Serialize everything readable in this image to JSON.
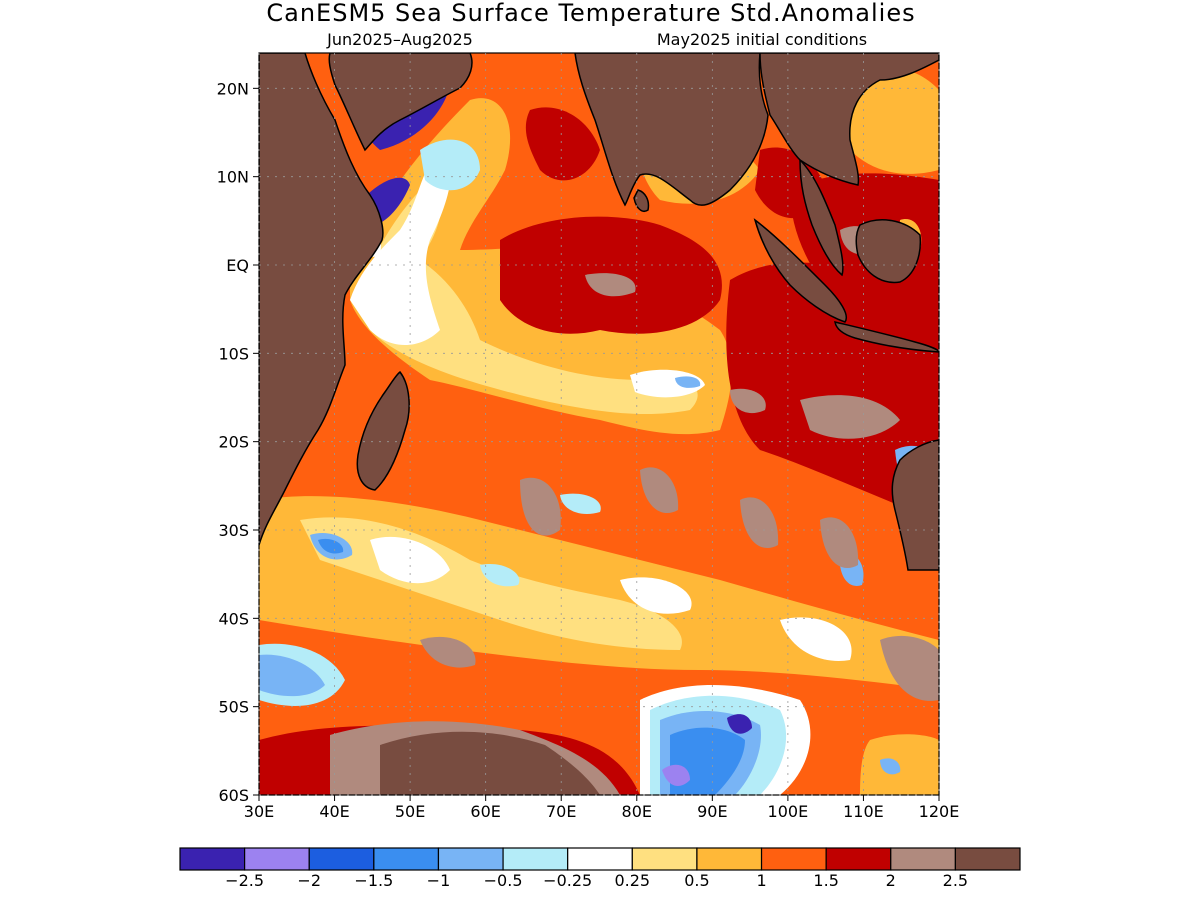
{
  "title": "CanESM5 Sea Surface Temperature Std.Anomalies",
  "subtitle_left": "Jun2025–Aug2025",
  "subtitle_right": "May2025 initial conditions",
  "map": {
    "lon_range": [
      30,
      120
    ],
    "lat_range": [
      -60,
      24
    ],
    "lat_ticks": [
      {
        "value": 20,
        "label": "20N"
      },
      {
        "value": 10,
        "label": "10N"
      },
      {
        "value": 0,
        "label": "EQ"
      },
      {
        "value": -10,
        "label": "10S"
      },
      {
        "value": -20,
        "label": "20S"
      },
      {
        "value": -30,
        "label": "30S"
      },
      {
        "value": -40,
        "label": "40S"
      },
      {
        "value": -50,
        "label": "50S"
      },
      {
        "value": -60,
        "label": "60S"
      }
    ],
    "lon_ticks": [
      {
        "value": 30,
        "label": "30E"
      },
      {
        "value": 40,
        "label": "40E"
      },
      {
        "value": 50,
        "label": "50E"
      },
      {
        "value": 60,
        "label": "60E"
      },
      {
        "value": 70,
        "label": "70E"
      },
      {
        "value": 80,
        "label": "80E"
      },
      {
        "value": 90,
        "label": "90E"
      },
      {
        "value": 100,
        "label": "100E"
      },
      {
        "value": 110,
        "label": "110E"
      },
      {
        "value": 120,
        "label": "120E"
      }
    ]
  },
  "colorbar": {
    "colors": [
      "#3a22b0",
      "#9c82f0",
      "#1c5ee0",
      "#3a8ef0",
      "#78b4f5",
      "#b4ecf8",
      "#ffffff",
      "#ffe080",
      "#ffb838",
      "#ff6010",
      "#c00000",
      "#b08a7e",
      "#784c40"
    ],
    "labels": [
      "−2.5",
      "−2",
      "−1.5",
      "−1",
      "−0.5",
      "−0.25",
      "0.25",
      "0.5",
      "1",
      "1.5",
      "2",
      "2.5"
    ]
  },
  "land_color": "#784c40"
}
